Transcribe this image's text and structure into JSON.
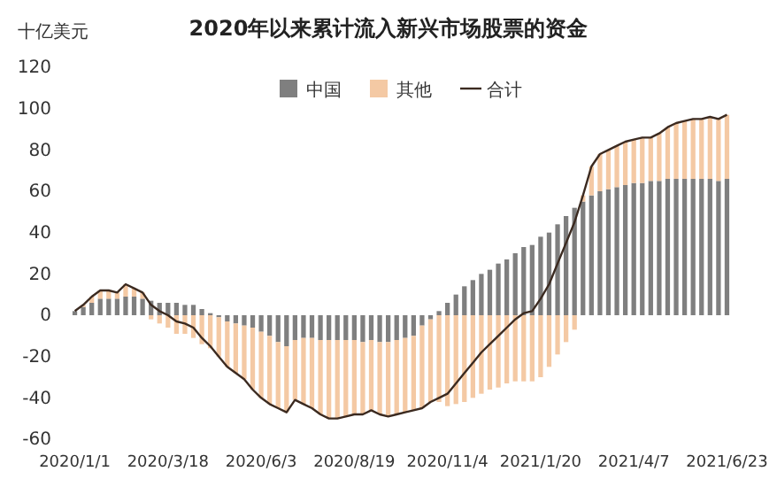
{
  "chart_data": {
    "type": "bar",
    "title": "2020年以来累计流入新兴市场股票的资金",
    "ylabel": "十亿美元",
    "stacked": true,
    "legend": "top",
    "grid": false,
    "marker": "none",
    "categories": [
      "2020/1/1",
      null,
      null,
      null,
      null,
      null,
      null,
      null,
      null,
      null,
      null,
      "2020/3/18",
      null,
      null,
      null,
      null,
      null,
      null,
      null,
      null,
      null,
      null,
      "2020/6/3",
      null,
      null,
      null,
      null,
      null,
      null,
      null,
      null,
      null,
      null,
      "2020/8/19",
      null,
      null,
      null,
      null,
      null,
      null,
      null,
      null,
      null,
      null,
      "2020/11/4",
      null,
      null,
      null,
      null,
      null,
      null,
      null,
      null,
      null,
      null,
      "2021/1/20",
      null,
      null,
      null,
      null,
      null,
      null,
      null,
      null,
      null,
      null,
      "2021/4/7",
      null,
      null,
      null,
      null,
      null,
      null,
      null,
      null,
      null,
      null,
      "2021/6/23"
    ],
    "ylim": [
      -60,
      120
    ],
    "yticks": [
      -60,
      -40,
      -20,
      0,
      20,
      40,
      60,
      80,
      100,
      120
    ],
    "series": [
      {
        "name": "中国",
        "color": "#7f7f7f",
        "values": [
          2,
          4,
          6,
          8,
          8,
          8,
          9,
          9,
          8,
          7,
          6,
          6,
          6,
          5,
          5,
          3,
          1,
          -1,
          -3,
          -4,
          -5,
          -6,
          -8,
          -10,
          -13,
          -15,
          -12,
          -11,
          -11,
          -12,
          -12,
          -12,
          -12,
          -12,
          -13,
          -12,
          -13,
          -13,
          -12,
          -11,
          -10,
          -5,
          -2,
          2,
          6,
          10,
          14,
          17,
          20,
          22,
          25,
          27,
          30,
          33,
          34,
          38,
          40,
          44,
          48,
          52,
          55,
          58,
          60,
          61,
          62,
          63,
          64,
          64,
          65,
          65,
          66,
          66,
          66,
          66,
          66,
          66,
          65,
          66
        ]
      },
      {
        "name": "其他",
        "color": "#f4c9a4",
        "values": [
          0,
          1,
          3,
          4,
          4,
          3,
          6,
          4,
          3,
          -2,
          -4,
          -6,
          -9,
          -9,
          -11,
          -14,
          -16,
          -19,
          -22,
          -24,
          -26,
          -30,
          -32,
          -33,
          -32,
          -32,
          -29,
          -32,
          -34,
          -36,
          -38,
          -38,
          -37,
          -36,
          -35,
          -34,
          -35,
          -36,
          -36,
          -36,
          -36,
          -40,
          -40,
          -42,
          -44,
          -43,
          -42,
          -40,
          -38,
          -36,
          -35,
          -33,
          -32,
          -32,
          -32,
          -30,
          -25,
          -19,
          -13,
          -7,
          3,
          14,
          18,
          19,
          20,
          21,
          21,
          22,
          21,
          23,
          25,
          27,
          28,
          29,
          29,
          30,
          30,
          31
        ]
      },
      {
        "name": "合计",
        "type": "line",
        "color": "#3b2a20",
        "line_style": "solid",
        "values": [
          2,
          5,
          9,
          12,
          12,
          11,
          15,
          13,
          11,
          5,
          2,
          0,
          -3,
          -4,
          -6,
          -11,
          -15,
          -20,
          -25,
          -28,
          -31,
          -36,
          -40,
          -43,
          -45,
          -47,
          -41,
          -43,
          -45,
          -48,
          -50,
          -50,
          -49,
          -48,
          -48,
          -46,
          -48,
          -49,
          -48,
          -47,
          -46,
          -45,
          -42,
          -40,
          -38,
          -33,
          -28,
          -23,
          -18,
          -14,
          -10,
          -6,
          -2,
          1,
          2,
          8,
          15,
          25,
          35,
          45,
          58,
          72,
          78,
          80,
          82,
          84,
          85,
          86,
          86,
          88,
          91,
          93,
          94,
          95,
          95,
          96,
          95,
          97
        ]
      }
    ]
  }
}
